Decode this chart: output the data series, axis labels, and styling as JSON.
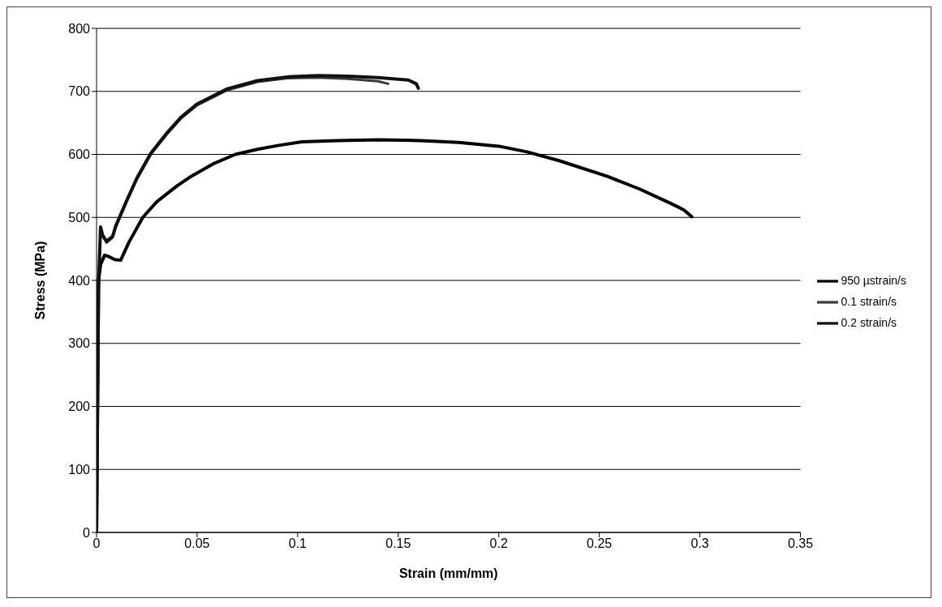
{
  "chart_data": {
    "type": "line",
    "xlabel": "Strain (mm/mm)",
    "ylabel": "Stress (MPa)",
    "xlim": [
      0,
      0.35
    ],
    "xticks": [
      0,
      0.05,
      0.1,
      0.15,
      0.2,
      0.25,
      0.3,
      0.35
    ],
    "ylim": [
      0,
      800
    ],
    "yticks": [
      0,
      100,
      200,
      300,
      400,
      500,
      600,
      700,
      800
    ],
    "grid": "y",
    "legend": "right",
    "marker": "none",
    "line_style": "solid",
    "series": [
      {
        "name": "950 µstrain/s",
        "color": "#000000",
        "x": [
          0,
          0.001,
          0.002,
          0.004,
          0.006,
          0.009,
          0.012,
          0.016,
          0.023,
          0.03,
          0.04,
          0.047,
          0.058,
          0.069,
          0.08,
          0.09,
          0.102,
          0.12,
          0.14,
          0.161,
          0.18,
          0.2,
          0.214,
          0.23,
          0.254,
          0.27,
          0.285,
          0.292,
          0.296
        ],
        "values": [
          0,
          400,
          425,
          440,
          438,
          433,
          432,
          460,
          500,
          525,
          550,
          565,
          585,
          600,
          608,
          614,
          620,
          622,
          623,
          622,
          619,
          613,
          604,
          590,
          565,
          545,
          523,
          512,
          501
        ]
      },
      {
        "name": "0.1 strain/s",
        "color": "#3a3a3a",
        "x": [
          0,
          0.001,
          0.002,
          0.003,
          0.005,
          0.008,
          0.0095,
          0.015,
          0.02,
          0.027,
          0.035,
          0.042,
          0.05,
          0.065,
          0.08,
          0.095,
          0.11,
          0.125,
          0.14,
          0.145
        ],
        "values": [
          0,
          390,
          480,
          470,
          460,
          468,
          484,
          525,
          560,
          600,
          632,
          657,
          678,
          702,
          715,
          721,
          722,
          720,
          716,
          712
        ]
      },
      {
        "name": "0.2 strain/s",
        "color": "#111111",
        "x": [
          0,
          0.001,
          0.002,
          0.003,
          0.005,
          0.008,
          0.0095,
          0.015,
          0.02,
          0.027,
          0.035,
          0.042,
          0.05,
          0.065,
          0.08,
          0.095,
          0.11,
          0.125,
          0.14,
          0.155,
          0.159,
          0.16
        ],
        "values": [
          0,
          395,
          485,
          472,
          462,
          470,
          486,
          527,
          562,
          602,
          634,
          659,
          680,
          704,
          717,
          723,
          725,
          724,
          722,
          718,
          712,
          705
        ]
      }
    ]
  }
}
